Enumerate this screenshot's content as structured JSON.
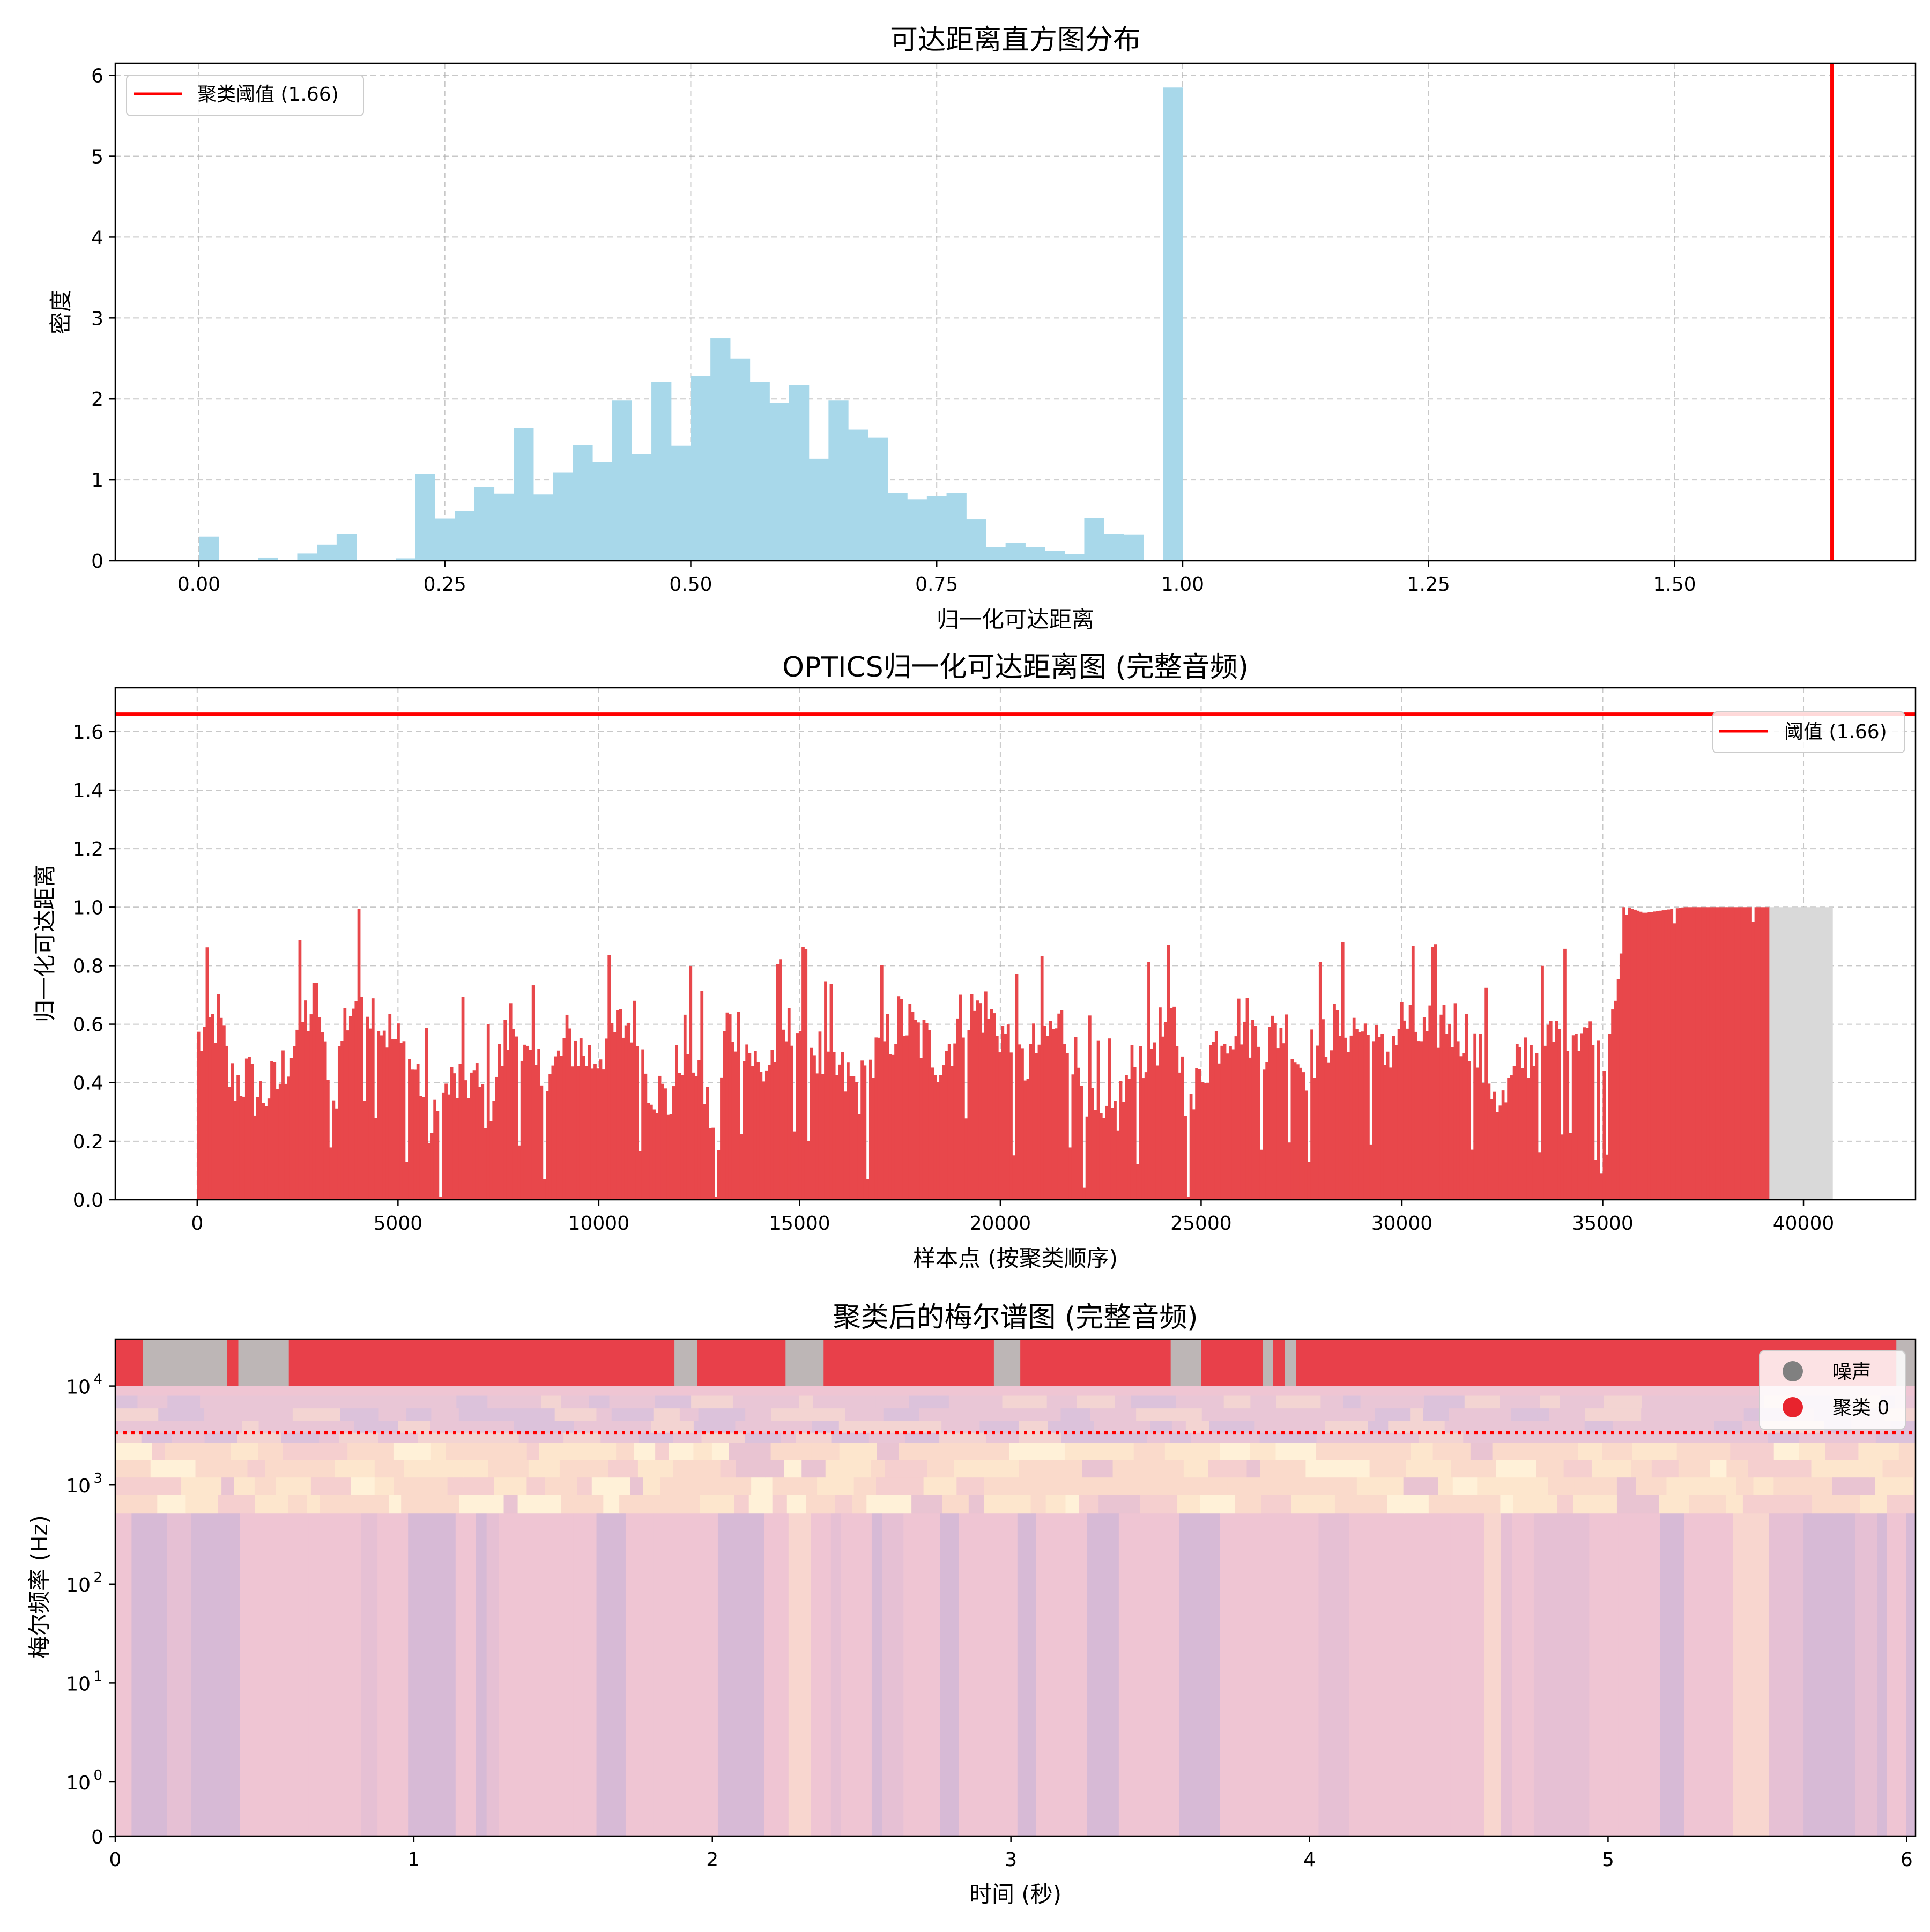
{
  "chart_data": [
    {
      "type": "bar",
      "title": "可达距离直方图分布",
      "xlabel": "归一化可达距离",
      "ylabel": "密度",
      "xlim": [
        -0.085,
        1.745
      ],
      "ylim": [
        0,
        6.15
      ],
      "xticks": [
        "0.00",
        "0.25",
        "0.50",
        "0.75",
        "1.00",
        "1.25",
        "1.50"
      ],
      "xtick_values": [
        0,
        0.25,
        0.5,
        0.75,
        1.0,
        1.25,
        1.5
      ],
      "yticks": [
        "0",
        "1",
        "2",
        "3",
        "4",
        "5",
        "6"
      ],
      "ytick_values": [
        0,
        1,
        2,
        3,
        4,
        5,
        6
      ],
      "grid": true,
      "bar_color": "#a8d8ea",
      "bin_start": 0.0,
      "bin_width": 0.02,
      "values": [
        0.3,
        0,
        0,
        0.04,
        0,
        0.09,
        0.2,
        0.33,
        0,
        0,
        0.03,
        1.07,
        0.52,
        0.61,
        0.91,
        0.83,
        1.64,
        0.82,
        1.09,
        1.43,
        1.22,
        1.98,
        1.32,
        2.21,
        1.42,
        2.28,
        2.75,
        2.5,
        2.21,
        1.95,
        2.17,
        1.26,
        1.98,
        1.62,
        1.52,
        0.84,
        0.76,
        0.8,
        0.84,
        0.51,
        0.17,
        0.22,
        0.17,
        0.12,
        0.08,
        0.53,
        0.33,
        0.32,
        0,
        5.85
      ],
      "threshold": {
        "value": 1.66,
        "label": "聚类阈值 (1.66)",
        "color": "#ff0000"
      },
      "legend": {
        "position": "upper-left",
        "entries": [
          "聚类阈值 (1.66)"
        ]
      }
    },
    {
      "type": "bar",
      "title": "OPTICS归一化可达距离图 (完整音频)",
      "xlabel": "样本点 (按聚类顺序)",
      "ylabel": "归一化可达距离",
      "xlim": [
        -2040,
        42790
      ],
      "ylim": [
        0,
        1.75
      ],
      "xticks": [
        "0",
        "5000",
        "10000",
        "15000",
        "20000",
        "25000",
        "30000",
        "35000",
        "40000"
      ],
      "xtick_values": [
        0,
        5000,
        10000,
        15000,
        20000,
        25000,
        30000,
        35000,
        40000
      ],
      "yticks": [
        "0.0",
        "0.2",
        "0.4",
        "0.6",
        "0.8",
        "1.0",
        "1.2",
        "1.4",
        "1.6"
      ],
      "ytick_values": [
        0,
        0.2,
        0.4,
        0.6,
        0.8,
        1.0,
        1.2,
        1.4,
        1.6
      ],
      "grid": true,
      "cluster_color": "#e8474b",
      "noise_color": "#d9d9d9",
      "cluster_extent": [
        0,
        39150
      ],
      "noise_extent": [
        39150,
        40730
      ],
      "noise_value": 1.0,
      "profile_x": [
        0,
        500,
        800,
        1200,
        1500,
        2000,
        2500,
        3000,
        3300,
        3600,
        4000,
        4500,
        5000,
        5500,
        5800,
        6200,
        6800,
        7200,
        7800,
        8200,
        8800,
        9200,
        9800,
        10200,
        10800,
        11200,
        11700,
        12100,
        12500,
        12750,
        12900,
        13100,
        13500,
        14000,
        14500,
        15000,
        15500,
        16000,
        16500,
        17000,
        17500,
        18000,
        18500,
        19000,
        19500,
        20000,
        20500,
        21000,
        21500,
        22000,
        22500,
        22900,
        23300,
        23800,
        24300,
        24700,
        25000,
        25500,
        26000,
        26500,
        27000,
        27500,
        28000,
        28500,
        29000,
        29500,
        30000,
        30500,
        31000,
        31500,
        32000,
        32500,
        33000,
        33500,
        34000,
        34500,
        35000,
        35300,
        35600,
        36000,
        37000,
        38000,
        39150
      ],
      "profile_y": [
        0.54,
        0.62,
        0.4,
        0.42,
        0.35,
        0.4,
        0.6,
        0.68,
        0.25,
        0.6,
        0.72,
        0.62,
        0.52,
        0.42,
        0.22,
        0.38,
        0.42,
        0.32,
        0.62,
        0.45,
        0.42,
        0.55,
        0.48,
        0.55,
        0.62,
        0.42,
        0.32,
        0.55,
        0.45,
        0.28,
        0.02,
        0.6,
        0.58,
        0.42,
        0.55,
        0.6,
        0.48,
        0.42,
        0.38,
        0.52,
        0.62,
        0.55,
        0.48,
        0.62,
        0.66,
        0.58,
        0.45,
        0.55,
        0.6,
        0.42,
        0.22,
        0.32,
        0.46,
        0.55,
        0.6,
        0.28,
        0.46,
        0.58,
        0.62,
        0.52,
        0.6,
        0.45,
        0.55,
        0.6,
        0.58,
        0.48,
        0.62,
        0.55,
        0.62,
        0.58,
        0.46,
        0.32,
        0.5,
        0.52,
        0.58,
        0.6,
        0.42,
        0.8,
        1.0,
        0.98,
        1.0,
        1.0,
        1.0
      ],
      "threshold": {
        "value": 1.66,
        "label": "阈值 (1.66)",
        "color": "#ff0000"
      },
      "legend": {
        "position": "upper-right",
        "entries": [
          "阈值 (1.66)"
        ]
      }
    },
    {
      "type": "heatmap",
      "title": "聚类后的梅尔谱图 (完整音频)",
      "xlabel": "时间 (秒)",
      "ylabel": "梅尔频率 (Hz)",
      "xlim": [
        0,
        6.03
      ],
      "xticks": [
        "0",
        "1",
        "2",
        "3",
        "4",
        "5",
        "6"
      ],
      "xtick_values": [
        0,
        1,
        2,
        3,
        4,
        5,
        6
      ],
      "ytick_labels": [
        {
          "base": "10",
          "exp": "4",
          "value": 10000
        },
        {
          "base": "10",
          "exp": "3",
          "value": 1000
        },
        {
          "base": "10",
          "exp": "2",
          "value": 100
        },
        {
          "base": "10",
          "exp": "1",
          "value": 10
        },
        {
          "base": "10",
          "exp": "0",
          "value": 1
        },
        {
          "base": "0",
          "exp": "",
          "value": 0
        }
      ],
      "yscale": "symlog",
      "threshold_freq": 3400,
      "threshold_color": "#ff0000",
      "legend": {
        "position": "upper-right",
        "entries": [
          {
            "label": "噪声",
            "color": "#808080"
          },
          {
            "label": "聚类 0",
            "color": "#e8232d"
          }
        ]
      }
    }
  ]
}
